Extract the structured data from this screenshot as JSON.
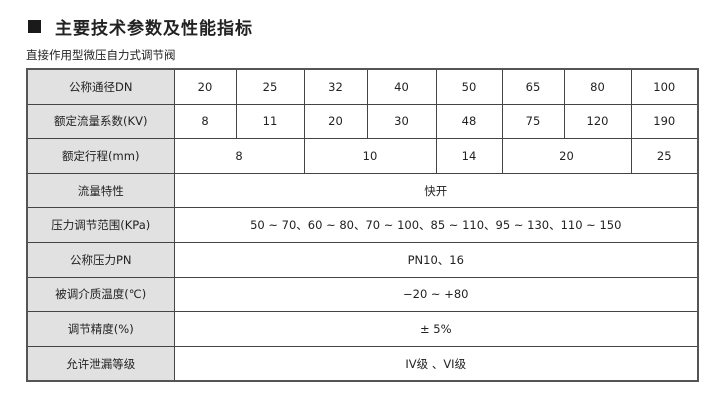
{
  "title": "主要技术参数及性能指标",
  "subtitle": "直接作用型微压自力式调节阀",
  "rows": {
    "dn": {
      "label": "公称通径DN",
      "values": [
        "20",
        "25",
        "32",
        "40",
        "50",
        "65",
        "80",
        "100"
      ]
    },
    "kv": {
      "label": "额定流量系数(KV)",
      "values": [
        "8",
        "11",
        "20",
        "30",
        "48",
        "75",
        "120",
        "190"
      ]
    },
    "stroke": {
      "label": "额定行程(mm)",
      "values": [
        "8",
        "10",
        "14",
        "20",
        "25"
      ]
    },
    "flow": {
      "label": "流量特性",
      "value": "快开"
    },
    "range": {
      "label": "压力调节范围(KPa)",
      "value": "50 ~ 70、60 ~ 80、70 ~ 100、85 ~ 110、95 ~ 130、110 ~ 150"
    },
    "pn": {
      "label": "公称压力PN",
      "value": "PN10、16"
    },
    "temp": {
      "label": "被调介质温度(℃)",
      "value": "−20 ~ +80"
    },
    "acc": {
      "label": "调节精度(%)",
      "value": "± 5%"
    },
    "leak": {
      "label": "允许泄漏等级",
      "value": "IV级 、VI级"
    }
  }
}
